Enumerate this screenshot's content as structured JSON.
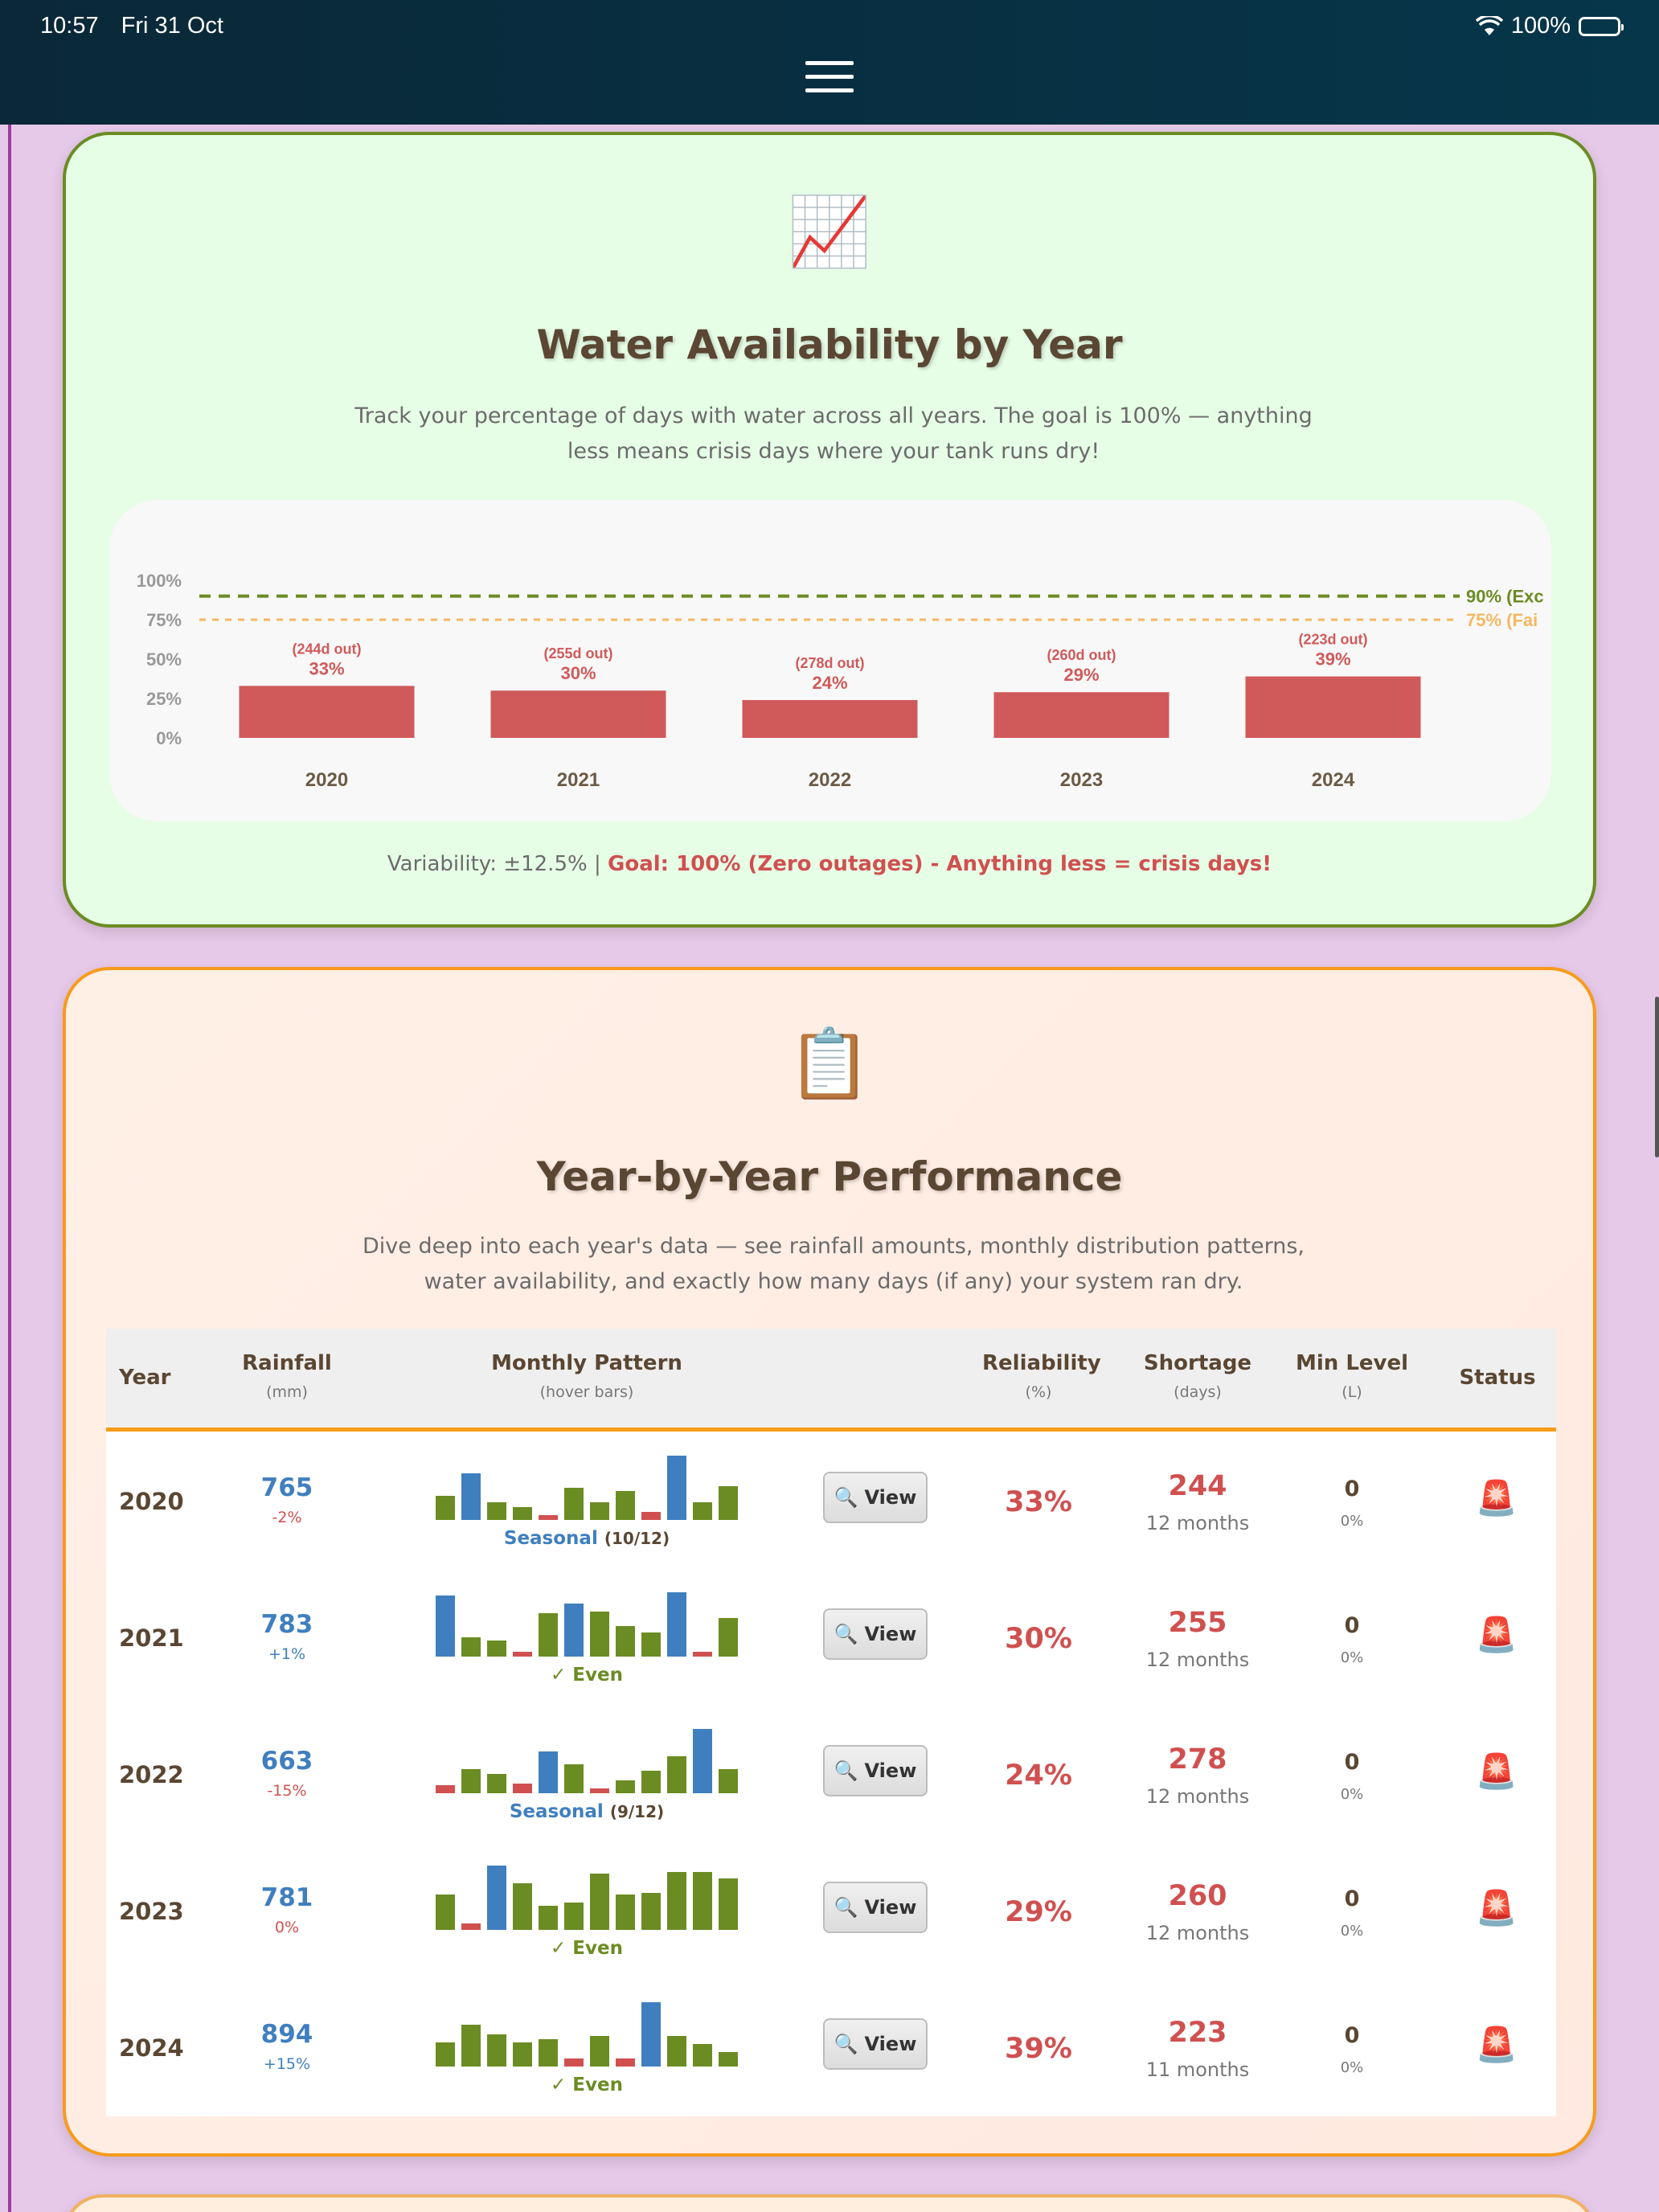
{
  "status_bar": {
    "time": "10:57",
    "date": "Fri 31 Oct",
    "battery": "100%"
  },
  "icons": {
    "menu": "hamburger-menu-icon",
    "chart": "📈",
    "clipboard": "📋",
    "search": "🔍",
    "alarm": "🚨"
  },
  "availability_card": {
    "title": "Water Availability by Year",
    "description": "Track your percentage of days with water across all years. The goal is 100% — anything less means crisis days where your tank runs dry!",
    "footer_prefix": "Variability: ±12.5% | ",
    "footer_goal": "Goal: 100% (Zero outages) - Anything less = crisis days!"
  },
  "chart_data": {
    "type": "bar",
    "categories": [
      "2020",
      "2021",
      "2022",
      "2023",
      "2024"
    ],
    "values": [
      33,
      30,
      24,
      29,
      39
    ],
    "value_labels": [
      "33%",
      "30%",
      "24%",
      "29%",
      "39%"
    ],
    "outage_labels": [
      "(244d out)",
      "(255d out)",
      "(278d out)",
      "(260d out)",
      "(223d out)"
    ],
    "yticks": [
      "100%",
      "75%",
      "50%",
      "25%",
      "0%"
    ],
    "ylim": [
      0,
      100
    ],
    "reference_lines": [
      {
        "value": 90,
        "label": "90% (Exc",
        "color": "#6b8c23"
      },
      {
        "value": 75,
        "label": "75% (Fai",
        "color": "#f5b860"
      }
    ],
    "bar_color": "#d05a5a"
  },
  "performance_card": {
    "title": "Year-by-Year Performance",
    "description": "Dive deep into each year's data — see rainfall amounts, monthly distribution patterns, water availability, and exactly how many days (if any) your system ran dry.",
    "headers": {
      "year": "Year",
      "rainfall": "Rainfall",
      "rainfall_unit": "(mm)",
      "pattern": "Monthly Pattern",
      "pattern_unit": "(hover bars)",
      "reliability": "Reliability",
      "reliability_unit": "(%)",
      "shortage": "Shortage",
      "shortage_unit": "(days)",
      "minlevel": "Min Level",
      "minlevel_unit": "(L)",
      "status": "Status"
    },
    "view_label": "View",
    "rows": [
      {
        "year": "2020",
        "rainfall": "765",
        "change": "-2%",
        "change_type": "neg",
        "pattern_type": "Seasonal",
        "pattern_count": "(10/12)",
        "bars": [
          [
            30,
            "green"
          ],
          [
            58,
            "blue"
          ],
          [
            22,
            "green"
          ],
          [
            16,
            "green"
          ],
          [
            6,
            "red"
          ],
          [
            40,
            "green"
          ],
          [
            22,
            "green"
          ],
          [
            36,
            "green"
          ],
          [
            10,
            "red"
          ],
          [
            80,
            "blue"
          ],
          [
            22,
            "green"
          ],
          [
            42,
            "green"
          ]
        ],
        "reliability": "33%",
        "shortage": "244",
        "months": "12 months",
        "minlevel": "0",
        "minpct": "0%"
      },
      {
        "year": "2021",
        "rainfall": "783",
        "change": "+1%",
        "change_type": "pos",
        "pattern_type": "✓ Even",
        "pattern_count": "",
        "bars": [
          [
            76,
            "blue"
          ],
          [
            24,
            "green"
          ],
          [
            20,
            "green"
          ],
          [
            6,
            "red"
          ],
          [
            54,
            "green"
          ],
          [
            66,
            "blue"
          ],
          [
            56,
            "green"
          ],
          [
            38,
            "green"
          ],
          [
            30,
            "green"
          ],
          [
            80,
            "blue"
          ],
          [
            6,
            "red"
          ],
          [
            48,
            "green"
          ]
        ],
        "reliability": "30%",
        "shortage": "255",
        "months": "12 months",
        "minlevel": "0",
        "minpct": "0%"
      },
      {
        "year": "2022",
        "rainfall": "663",
        "change": "-15%",
        "change_type": "neg",
        "pattern_type": "Seasonal",
        "pattern_count": "(9/12)",
        "bars": [
          [
            10,
            "red"
          ],
          [
            30,
            "green"
          ],
          [
            24,
            "green"
          ],
          [
            12,
            "red"
          ],
          [
            52,
            "blue"
          ],
          [
            36,
            "green"
          ],
          [
            6,
            "red"
          ],
          [
            16,
            "green"
          ],
          [
            28,
            "green"
          ],
          [
            46,
            "green"
          ],
          [
            80,
            "blue"
          ],
          [
            30,
            "green"
          ]
        ],
        "reliability": "24%",
        "shortage": "278",
        "months": "12 months",
        "minlevel": "0",
        "minpct": "0%"
      },
      {
        "year": "2023",
        "rainfall": "781",
        "change": "0%",
        "change_type": "neg",
        "pattern_type": "✓ Even",
        "pattern_count": "",
        "bars": [
          [
            44,
            "green"
          ],
          [
            8,
            "red"
          ],
          [
            80,
            "blue"
          ],
          [
            58,
            "green"
          ],
          [
            30,
            "green"
          ],
          [
            34,
            "green"
          ],
          [
            70,
            "green"
          ],
          [
            44,
            "green"
          ],
          [
            46,
            "green"
          ],
          [
            72,
            "green"
          ],
          [
            72,
            "green"
          ],
          [
            64,
            "green"
          ]
        ],
        "reliability": "29%",
        "shortage": "260",
        "months": "12 months",
        "minlevel": "0",
        "minpct": "0%"
      },
      {
        "year": "2024",
        "rainfall": "894",
        "change": "+15%",
        "change_type": "pos",
        "pattern_type": "✓ Even",
        "pattern_count": "",
        "bars": [
          [
            30,
            "green"
          ],
          [
            52,
            "green"
          ],
          [
            40,
            "green"
          ],
          [
            30,
            "green"
          ],
          [
            34,
            "green"
          ],
          [
            10,
            "red"
          ],
          [
            38,
            "green"
          ],
          [
            10,
            "red"
          ],
          [
            80,
            "blue"
          ],
          [
            38,
            "green"
          ],
          [
            28,
            "green"
          ],
          [
            18,
            "green"
          ]
        ],
        "reliability": "39%",
        "shortage": "223",
        "months": "11 months",
        "minlevel": "0",
        "minpct": "0%"
      }
    ]
  }
}
